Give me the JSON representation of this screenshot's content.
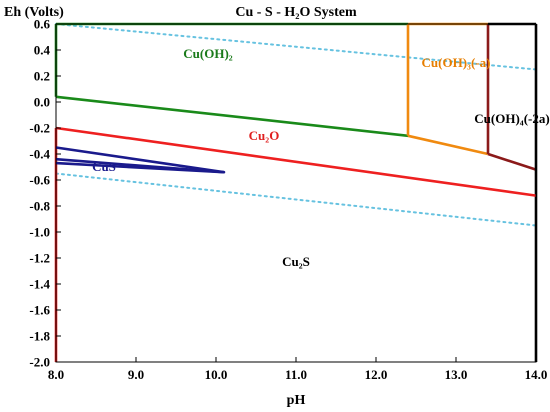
{
  "chart_data": {
    "type": "line",
    "title": "Cu - S - H₂O System",
    "xlabel": "pH",
    "ylabel": "Eh (Volts)",
    "xlim": [
      8.0,
      14.0
    ],
    "ylim": [
      -2.0,
      0.6
    ],
    "x_ticks": [
      "8.0",
      "9.0",
      "10.0",
      "11.0",
      "12.0",
      "13.0",
      "14.0"
    ],
    "y_ticks": [
      "0.6",
      "0.4",
      "0.2",
      "0.0",
      "-0.2",
      "-0.4",
      "-0.6",
      "-0.8",
      "-1.0",
      "-1.2",
      "-1.4",
      "-1.6",
      "-1.8",
      "-2.0"
    ],
    "grid": false,
    "regions": [
      {
        "label": "Cu(OH)₂",
        "x": 9.9,
        "y": 0.37,
        "color": "#1a7a1a"
      },
      {
        "label": "Cu(OH)₃(-a)",
        "x": 13.0,
        "y": 0.3,
        "color": "#e67e00"
      },
      {
        "label": "Cu(OH)₄(-2a)",
        "x": 13.7,
        "y": -0.13,
        "color": "#000000"
      },
      {
        "label": "Cu₂O",
        "x": 10.6,
        "y": -0.26,
        "color": "#e02020"
      },
      {
        "label": "CuS",
        "x": 8.6,
        "y": -0.5,
        "color": "#1a1a8c"
      },
      {
        "label": "Cu₂S",
        "x": 11.0,
        "y": -1.23,
        "color": "#000000"
      }
    ],
    "series": [
      {
        "color": "#66c2e0",
        "style": "dotted",
        "x": [
          8.0,
          14.0
        ],
        "y": [
          0.6,
          0.25
        ]
      },
      {
        "color": "#66c2e0",
        "style": "dotted",
        "x": [
          8.0,
          14.0
        ],
        "y": [
          -0.55,
          -0.95
        ]
      },
      {
        "color": "#1a8a1a",
        "style": "solid",
        "x": [
          8.0,
          12.4
        ],
        "y": [
          0.6,
          0.6
        ]
      },
      {
        "color": "#1a8a1a",
        "style": "solid",
        "x": [
          8.0,
          8.0
        ],
        "y": [
          0.6,
          0.04
        ]
      },
      {
        "color": "#1a8a1a",
        "style": "solid",
        "x": [
          8.0,
          12.4
        ],
        "y": [
          0.04,
          -0.26
        ]
      },
      {
        "color": "#f08a10",
        "style": "solid",
        "x": [
          12.4,
          13.4
        ],
        "y": [
          0.6,
          0.6
        ]
      },
      {
        "color": "#f08a10",
        "style": "solid",
        "x": [
          12.4,
          12.4
        ],
        "y": [
          0.6,
          -0.26
        ]
      },
      {
        "color": "#f08a10",
        "style": "solid",
        "x": [
          12.4,
          13.4
        ],
        "y": [
          -0.26,
          -0.4
        ]
      },
      {
        "color": "#8b1a1a",
        "style": "solid",
        "x": [
          13.4,
          13.4
        ],
        "y": [
          0.6,
          -0.4
        ]
      },
      {
        "color": "#8b1a1a",
        "style": "solid",
        "x": [
          13.4,
          14.0
        ],
        "y": [
          -0.4,
          -0.52
        ]
      },
      {
        "color": "#000000",
        "style": "solid",
        "x": [
          13.4,
          14.0
        ],
        "y": [
          0.6,
          0.6
        ]
      },
      {
        "color": "#000000",
        "style": "solid",
        "x": [
          14.0,
          14.0
        ],
        "y": [
          0.6,
          -2.0
        ]
      },
      {
        "color": "#ee2020",
        "style": "solid",
        "x": [
          8.0,
          14.0
        ],
        "y": [
          -0.2,
          -0.72
        ]
      },
      {
        "color": "#ee2020",
        "style": "solid",
        "x": [
          8.0,
          8.0
        ],
        "y": [
          -0.2,
          -2.0
        ]
      },
      {
        "color": "#1a1a8c",
        "style": "solid",
        "x": [
          8.0,
          10.1,
          8.0
        ],
        "y": [
          -0.35,
          -0.54,
          -0.47
        ]
      },
      {
        "color": "#1a1a8c",
        "style": "solid",
        "x": [
          8.0,
          10.1
        ],
        "y": [
          -0.44,
          -0.54
        ]
      }
    ]
  }
}
